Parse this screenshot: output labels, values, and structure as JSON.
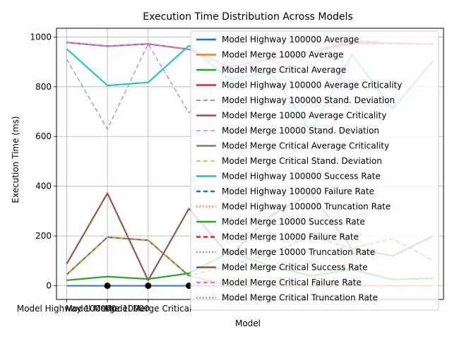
{
  "chart_data": {
    "type": "line",
    "title": "Execution Time Distribution Across Models",
    "xlabel": "Model",
    "ylabel": "Execution Time (ms)",
    "ylim": [
      -55,
      1035
    ],
    "yticks": [
      0,
      200,
      400,
      600,
      800,
      1000
    ],
    "grid": true,
    "legend_position": "upper right",
    "x_tick_labels": [
      "Model Highway 100000",
      "Model Merge 10000",
      "Model Merge Critical"
    ],
    "x": [
      0,
      1,
      2,
      3,
      4,
      5,
      6,
      7,
      8,
      9
    ],
    "series": [
      {
        "name": "Model Highway 100000 Average",
        "color": "#1f77b4",
        "style": "solid",
        "width": 2,
        "values": [
          0,
          0,
          0,
          0,
          0,
          0,
          0,
          0,
          0,
          0
        ]
      },
      {
        "name": "Model Merge 10000 Average",
        "color": "#ff7f0e",
        "style": "solid",
        "width": 2,
        "values": [
          45,
          195,
          183,
          40,
          0,
          0,
          0,
          0,
          0,
          0
        ]
      },
      {
        "name": "Model Merge Critical Average",
        "color": "#2ca02c",
        "style": "solid",
        "width": 2,
        "values": [
          22,
          37,
          27,
          50,
          135,
          80,
          40,
          65,
          25,
          30
        ]
      },
      {
        "name": "Model Highway 100000 Average Criticality",
        "color": "#d62728",
        "style": "solid",
        "width": 2,
        "values": [
          978,
          963,
          972,
          950,
          880,
          910,
          940,
          985,
          975,
          972
        ]
      },
      {
        "name": "Model Highway 100000 Stand. Deviation",
        "color": "#9467bd",
        "style": "dashed",
        "width": 1,
        "values": [
          910,
          630,
          972,
          695,
          860,
          890,
          930,
          970,
          970,
          970
        ]
      },
      {
        "name": "Model Merge 10000 Average Criticality",
        "color": "#8c564b",
        "style": "solid",
        "width": 2,
        "values": [
          88,
          372,
          22,
          310,
          120,
          280,
          370,
          150,
          120,
          200
        ]
      },
      {
        "name": "Model Merge 10000 Stand. Deviation",
        "color": "#e377c2",
        "style": "dashed",
        "width": 1,
        "values": [
          978,
          963,
          972,
          950,
          880,
          910,
          940,
          975,
          975,
          972
        ]
      },
      {
        "name": "Model Merge Critical Average Criticality",
        "color": "#7f7f7f",
        "style": "solid",
        "width": 2,
        "values": [
          978,
          963,
          972,
          950,
          880,
          910,
          940,
          975,
          975,
          972
        ]
      },
      {
        "name": "Model Merge Critical Stand. Deviation",
        "color": "#bcbd22",
        "style": "dashed",
        "width": 1,
        "values": [
          45,
          195,
          183,
          40,
          80,
          130,
          200,
          150,
          190,
          100
        ]
      },
      {
        "name": "Model Highway 100000 Success Rate",
        "color": "#17becf",
        "style": "solid",
        "width": 2,
        "values": [
          952,
          805,
          817,
          965,
          830,
          860,
          620,
          930,
          710,
          905
        ]
      },
      {
        "name": "Model Highway 100000 Failure Rate",
        "color": "#1f77b4",
        "style": "dashed",
        "width": 2,
        "values": [
          45,
          195,
          183,
          40,
          80,
          130,
          200,
          150,
          190,
          100
        ]
      },
      {
        "name": "Model Highway 100000 Truncation Rate",
        "color": "#ff7f0e",
        "style": "dotted",
        "width": 2,
        "values": [
          45,
          195,
          183,
          40,
          80,
          130,
          200,
          150,
          190,
          100
        ]
      },
      {
        "name": "Model Merge 10000 Success Rate",
        "color": "#2ca02c",
        "style": "solid",
        "width": 2,
        "values": [
          22,
          37,
          27,
          50,
          135,
          80,
          40,
          65,
          25,
          30
        ]
      },
      {
        "name": "Model Merge 10000 Failure Rate",
        "color": "#d62728",
        "style": "dashed",
        "width": 2,
        "values": [
          978,
          963,
          972,
          950,
          880,
          910,
          940,
          975,
          975,
          972
        ]
      },
      {
        "name": "Model Merge 10000 Truncation Rate",
        "color": "#9467bd",
        "style": "dotted",
        "width": 2,
        "values": [
          0,
          0,
          0,
          0,
          0,
          0,
          0,
          0,
          0,
          0
        ]
      },
      {
        "name": "Model Merge Critical Success Rate",
        "color": "#8c564b",
        "style": "solid",
        "width": 2,
        "values": [
          88,
          372,
          22,
          310,
          120,
          280,
          370,
          150,
          120,
          200
        ]
      },
      {
        "name": "Model Merge Critical Failure Rate",
        "color": "#e377c2",
        "style": "dashed",
        "width": 2,
        "values": [
          978,
          963,
          972,
          950,
          880,
          910,
          940,
          985,
          975,
          972
        ]
      },
      {
        "name": "Model Merge Critical Truncation Rate",
        "color": "#7f7f7f",
        "style": "dotted",
        "width": 2,
        "values": [
          0,
          0,
          0,
          0,
          0,
          0,
          0,
          0,
          0,
          0
        ]
      }
    ],
    "markers": [
      {
        "x": 1,
        "y": 0
      },
      {
        "x": 2,
        "y": 0
      },
      {
        "x": 3,
        "y": 0
      }
    ]
  }
}
